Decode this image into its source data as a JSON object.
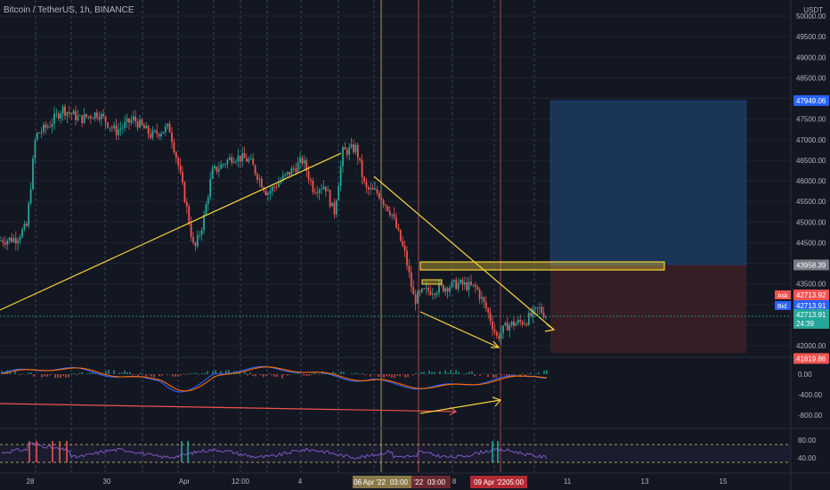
{
  "header": {
    "title": "Bitcoin / TetherUS, 1h, BINANCE",
    "currency": "USDT"
  },
  "colors": {
    "background": "#131722",
    "grid": "#1f2430",
    "up": "#26a69a",
    "down": "#ef5350",
    "trendline": "#f5d33a",
    "profit_zone": "#1c3a5e",
    "loss_zone": "#3b1f26",
    "macd_line": "#2962ff",
    "signal_line": "#ff6d00",
    "rsi_line": "#7e57c2",
    "bid_tag": "#2962ff",
    "ask_tag": "#ef5350",
    "last_tag": "#26a69a",
    "target_tag": "#2962ff",
    "stop_tag": "#ef5350",
    "entry_tag": "#787b86"
  },
  "chart_data": [
    {
      "type": "line",
      "panel": "price",
      "title": "Bitcoin / TetherUS, 1h, BINANCE",
      "ylabel": "USDT",
      "ylim": [
        41700,
        50000
      ],
      "y_ticks": [
        "50000.00",
        "49500.00",
        "49000.00",
        "48500.00",
        "48000.00",
        "47500.00",
        "47000.00",
        "46500.00",
        "46000.00",
        "45500.00",
        "45000.00",
        "44500.00",
        "44000.00",
        "43500.00",
        "43000.00",
        "42000.00"
      ],
      "x_ticks": [
        "28",
        "30",
        "Apr",
        "12:00",
        "4",
        "8",
        "11",
        "13",
        "15"
      ],
      "price_path": [
        {
          "x": 0,
          "y": 44550
        },
        {
          "x": 18,
          "y": 44600
        },
        {
          "x": 30,
          "y": 44900
        },
        {
          "x": 40,
          "y": 47100
        },
        {
          "x": 55,
          "y": 47350
        },
        {
          "x": 70,
          "y": 47750
        },
        {
          "x": 90,
          "y": 47500
        },
        {
          "x": 110,
          "y": 47650
        },
        {
          "x": 130,
          "y": 47200
        },
        {
          "x": 150,
          "y": 47500
        },
        {
          "x": 170,
          "y": 47100
        },
        {
          "x": 190,
          "y": 47300
        },
        {
          "x": 200,
          "y": 46400
        },
        {
          "x": 210,
          "y": 45300
        },
        {
          "x": 218,
          "y": 44300
        },
        {
          "x": 228,
          "y": 45000
        },
        {
          "x": 238,
          "y": 46200
        },
        {
          "x": 250,
          "y": 46400
        },
        {
          "x": 262,
          "y": 46600
        },
        {
          "x": 280,
          "y": 46500
        },
        {
          "x": 300,
          "y": 45700
        },
        {
          "x": 320,
          "y": 46100
        },
        {
          "x": 340,
          "y": 46500
        },
        {
          "x": 352,
          "y": 45800
        },
        {
          "x": 365,
          "y": 45900
        },
        {
          "x": 375,
          "y": 45200
        },
        {
          "x": 385,
          "y": 46700
        },
        {
          "x": 400,
          "y": 46800
        },
        {
          "x": 410,
          "y": 45800
        },
        {
          "x": 425,
          "y": 45700
        },
        {
          "x": 440,
          "y": 45200
        },
        {
          "x": 455,
          "y": 44200
        },
        {
          "x": 465,
          "y": 43100
        },
        {
          "x": 475,
          "y": 43300
        },
        {
          "x": 495,
          "y": 43400
        },
        {
          "x": 515,
          "y": 43500
        },
        {
          "x": 535,
          "y": 43400
        },
        {
          "x": 548,
          "y": 42800
        },
        {
          "x": 558,
          "y": 42200
        },
        {
          "x": 570,
          "y": 42500
        },
        {
          "x": 590,
          "y": 42600
        },
        {
          "x": 605,
          "y": 42900
        },
        {
          "x": 615,
          "y": 42700
        }
      ],
      "long_position": {
        "target": 47949.06,
        "entry": 43958.39,
        "stop": 41819.86
      },
      "bid": 42713.91,
      "ask": 42713.92,
      "last": 42713.91,
      "countdown": "24:39",
      "price_tags": {
        "target": "47949.06",
        "entry": "43958.39",
        "stop": "41819.86",
        "ask_label": "Ask",
        "ask": "42713.92",
        "bid_label": "Bid",
        "bid": "42713.91",
        "last": "42713.91",
        "countdown": "24:39"
      }
    },
    {
      "type": "line",
      "panel": "macd",
      "ylim": [
        -900,
        250
      ],
      "y_ticks": [
        "0.00",
        "-400.00",
        "-800.00"
      ]
    },
    {
      "type": "line",
      "panel": "rsi",
      "ylim": [
        30,
        90
      ],
      "y_ticks": [
        "80.00",
        "40.00"
      ],
      "levels": [
        70,
        30
      ]
    }
  ],
  "time_labels": [
    {
      "text": "06 Apr '22",
      "x": 415
    },
    {
      "text": "03:00",
      "x": 448
    },
    {
      "text": "'22",
      "x": 470
    },
    {
      "text": "03:00",
      "x": 490
    },
    {
      "text": "09 Apr '22",
      "x": 550
    },
    {
      "text": "05:00",
      "x": 578
    }
  ]
}
